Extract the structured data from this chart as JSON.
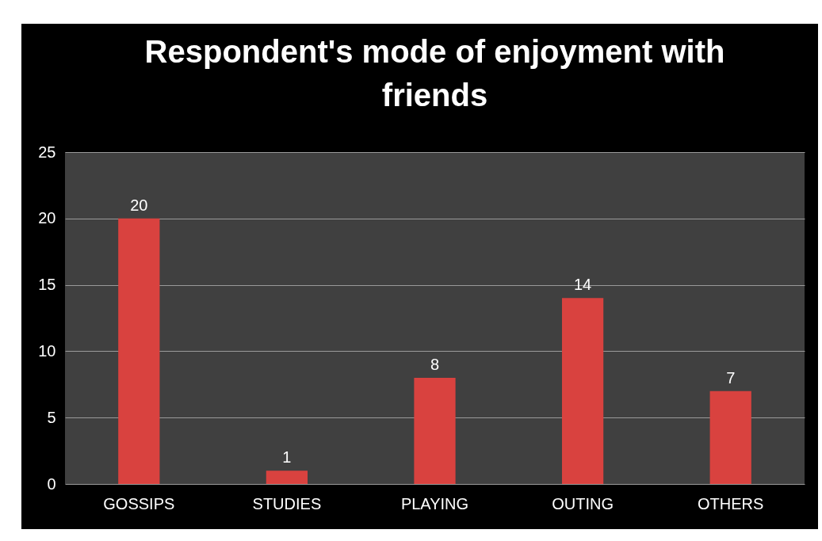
{
  "chart_data": {
    "type": "bar",
    "title": "Respondent's mode of enjoyment with friends",
    "categories": [
      "GOSSIPS",
      "STUDIES",
      "PLAYING",
      "OUTING",
      "OTHERS"
    ],
    "values": [
      20,
      1,
      8,
      14,
      7
    ],
    "color": "#d9423f",
    "ylim": [
      0,
      25
    ],
    "yticks": [
      0,
      5,
      10,
      15,
      20,
      25
    ],
    "grid": "y",
    "data_labels": true
  }
}
